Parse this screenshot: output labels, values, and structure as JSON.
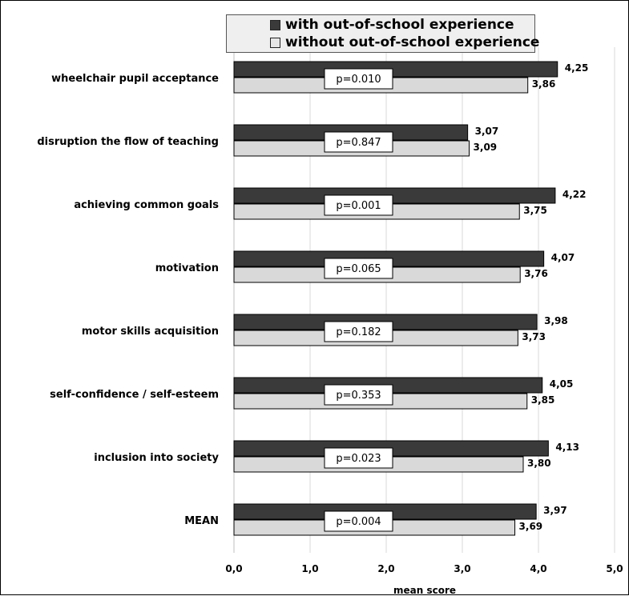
{
  "chart_data": {
    "type": "bar",
    "orientation": "horizontal",
    "categories": [
      "wheelchair pupil acceptance",
      "disruption the flow of teaching",
      "achieving common goals",
      "motivation",
      "motor skills acquisition",
      "self-confidence / self-esteem",
      "inclusion into society",
      "MEAN"
    ],
    "series": [
      {
        "name": "with out-of-school experience",
        "color": "#3a3a3a",
        "values": [
          4.25,
          3.07,
          4.22,
          4.07,
          3.98,
          4.05,
          4.13,
          3.97
        ],
        "value_labels": [
          "4,25",
          "3,07",
          "4,22",
          "4,07",
          "3,98",
          "4,05",
          "4,13",
          "3,97"
        ]
      },
      {
        "name": "without out-of-school experience",
        "color": "#d9d9d9",
        "values": [
          3.86,
          3.09,
          3.75,
          3.76,
          3.73,
          3.85,
          3.8,
          3.69
        ],
        "value_labels": [
          "3,86",
          "3,09",
          "3,75",
          "3,76",
          "3,73",
          "3,85",
          "3,80",
          "3,69"
        ]
      }
    ],
    "p_values": [
      "p=0.010",
      "p=0.847",
      "p=0.001",
      "p=0.065",
      "p=0.182",
      "p=0.353",
      "p=0.023",
      "p=0.004"
    ],
    "xlim": [
      0,
      5
    ],
    "xticks": [
      0,
      1,
      2,
      3,
      4,
      5
    ],
    "xtick_labels": [
      "0,0",
      "1,0",
      "2,0",
      "3,0",
      "4,0",
      "5,0"
    ],
    "xlabel": "mean score",
    "grid": "vertical",
    "legend": "top-center"
  }
}
